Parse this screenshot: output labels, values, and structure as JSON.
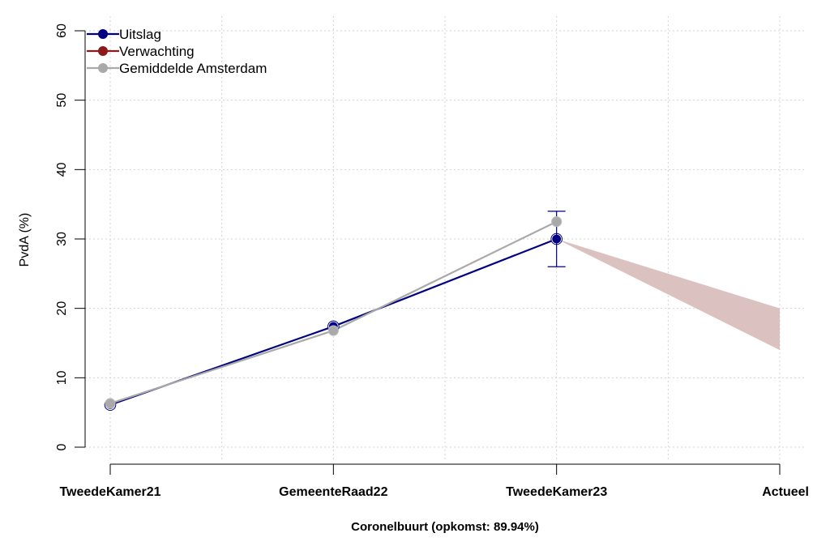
{
  "chart_data": {
    "type": "line",
    "xlabel": "Coronelbuurt (opkomst: 89.94%)",
    "ylabel": "PvdA (%)",
    "categories": [
      "TweedeKamer21",
      "GemeenteRaad22",
      "TweedeKamer23",
      "Actueel"
    ],
    "ylim": [
      0,
      60
    ],
    "yticks": [
      0,
      10,
      20,
      30,
      40,
      50,
      60
    ],
    "grid": true,
    "legend_position": "top-left",
    "series": [
      {
        "name": "Uitslag",
        "color": "#000080",
        "values": [
          6.1,
          17.4,
          30.0,
          null
        ],
        "error_bar": {
          "category": "TweedeKamer23",
          "low": 26.0,
          "high": 34.0
        }
      },
      {
        "name": "Verwachting",
        "color": "#8b1a1a",
        "band": {
          "from_category": "TweedeKamer23",
          "to_category": "Actueel",
          "start": [
            30.0,
            30.0
          ],
          "end": [
            14.0,
            20.0
          ],
          "fill": "#dcc1c1"
        }
      },
      {
        "name": "Gemiddelde Amsterdam",
        "color": "#a9a9a9",
        "values": [
          6.3,
          16.8,
          32.5,
          null
        ]
      }
    ]
  }
}
